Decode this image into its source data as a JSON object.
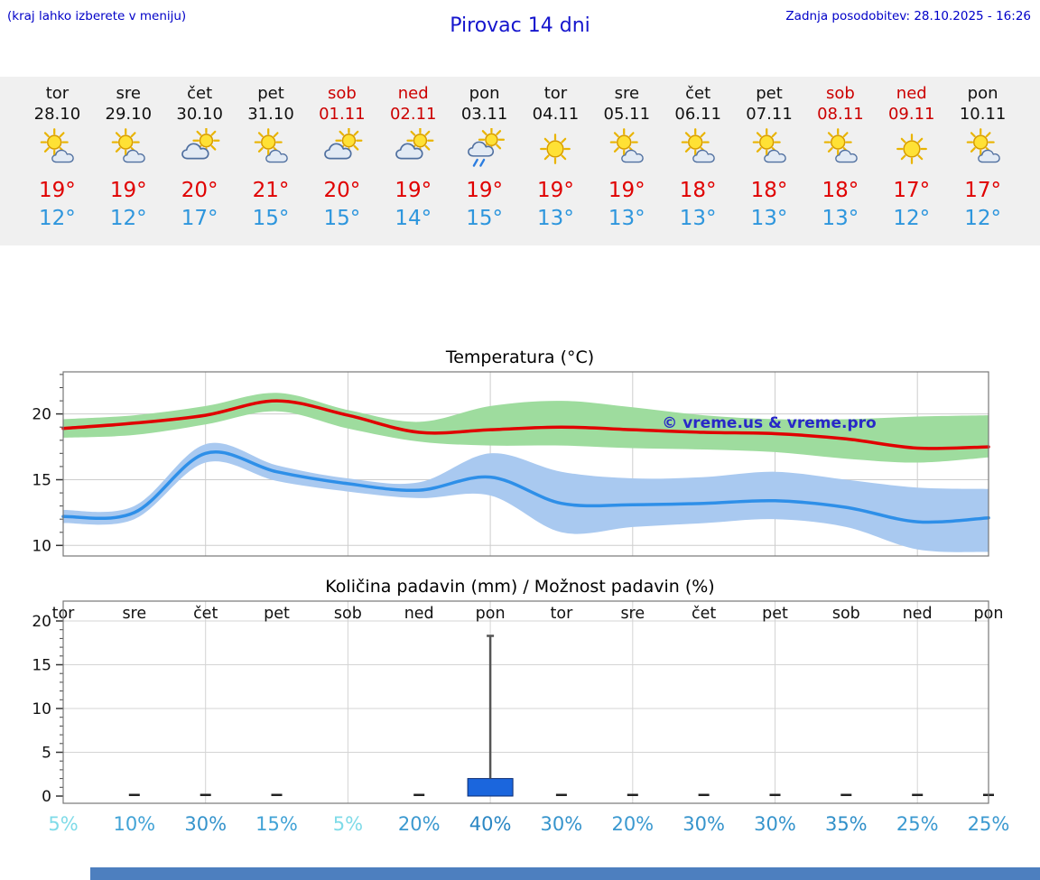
{
  "header": {
    "hint": "(kraj lahko izberete v meniju)",
    "title": "Pirovac 14 dni",
    "last_update": "Zadnja posodobitev: 28.10.2025 - 16:26"
  },
  "colors": {
    "header_text": "#0000c8",
    "high_temp": "#e00000",
    "low_temp": "#2e96dd",
    "weekend_text": "#cc0000",
    "strip_bg": "#f0f0f0",
    "footer_bar": "#4d7fbf",
    "max_line": "#e00000",
    "min_line": "#2e8fe8",
    "max_band": "#9edc9e",
    "min_band": "#a9c9f0",
    "precip_bar": "#1b66dd"
  },
  "days": [
    {
      "name": "tor",
      "date": "28.10",
      "weekend": false,
      "icon": "partly-sunny",
      "high": "19°",
      "low": "12°"
    },
    {
      "name": "sre",
      "date": "29.10",
      "weekend": false,
      "icon": "partly-sunny",
      "high": "19°",
      "low": "12°"
    },
    {
      "name": "čet",
      "date": "30.10",
      "weekend": false,
      "icon": "mostly-cloudy-sun",
      "high": "20°",
      "low": "17°"
    },
    {
      "name": "pet",
      "date": "31.10",
      "weekend": false,
      "icon": "partly-sunny",
      "high": "21°",
      "low": "15°"
    },
    {
      "name": "sob",
      "date": "01.11",
      "weekend": true,
      "icon": "mostly-cloudy-sun",
      "high": "20°",
      "low": "15°"
    },
    {
      "name": "ned",
      "date": "02.11",
      "weekend": true,
      "icon": "mostly-cloudy-sun",
      "high": "19°",
      "low": "14°"
    },
    {
      "name": "pon",
      "date": "03.11",
      "weekend": false,
      "icon": "sun-cloud-rain",
      "high": "19°",
      "low": "15°"
    },
    {
      "name": "tor",
      "date": "04.11",
      "weekend": false,
      "icon": "sunny",
      "high": "19°",
      "low": "13°"
    },
    {
      "name": "sre",
      "date": "05.11",
      "weekend": false,
      "icon": "partly-sunny",
      "high": "19°",
      "low": "13°"
    },
    {
      "name": "čet",
      "date": "06.11",
      "weekend": false,
      "icon": "partly-sunny",
      "high": "18°",
      "low": "13°"
    },
    {
      "name": "pet",
      "date": "07.11",
      "weekend": false,
      "icon": "partly-sunny",
      "high": "18°",
      "low": "13°"
    },
    {
      "name": "sob",
      "date": "08.11",
      "weekend": true,
      "icon": "partly-sunny",
      "high": "18°",
      "low": "13°"
    },
    {
      "name": "ned",
      "date": "09.11",
      "weekend": true,
      "icon": "sunny",
      "high": "17°",
      "low": "12°"
    },
    {
      "name": "pon",
      "date": "10.11",
      "weekend": false,
      "icon": "partly-sunny",
      "high": "17°",
      "low": "12°"
    }
  ],
  "chart_data": [
    {
      "type": "line",
      "title": "Temperatura (°C)",
      "categories": [
        "tor",
        "sre",
        "čet",
        "pet",
        "sob",
        "ned",
        "pon",
        "tor",
        "sre",
        "čet",
        "pet",
        "sob",
        "ned",
        "pon"
      ],
      "ylim": [
        9.2,
        23.2
      ],
      "yticks": [
        10,
        15,
        20
      ],
      "grid": true,
      "legend": "none",
      "watermark": "© vreme.us & vreme.pro",
      "series": [
        {
          "name": "max-temp",
          "color": "#e00000",
          "values": [
            18.9,
            19.3,
            19.9,
            21.0,
            19.9,
            18.6,
            18.8,
            19.0,
            18.8,
            18.6,
            18.5,
            18.1,
            17.4,
            17.5
          ]
        },
        {
          "name": "min-temp",
          "color": "#2e8fe8",
          "values": [
            12.2,
            12.5,
            17.0,
            15.6,
            14.7,
            14.2,
            15.2,
            13.2,
            13.1,
            13.2,
            13.4,
            12.9,
            11.8,
            12.1
          ]
        }
      ],
      "bands": [
        {
          "name": "max-temp-range",
          "color": "#9edc9e",
          "upper": [
            19.6,
            19.9,
            20.6,
            21.6,
            20.3,
            19.4,
            20.6,
            21.0,
            20.5,
            19.9,
            19.6,
            19.6,
            19.8,
            19.9
          ],
          "lower": [
            18.2,
            18.4,
            19.2,
            20.2,
            18.9,
            17.9,
            17.6,
            17.6,
            17.4,
            17.3,
            17.1,
            16.6,
            16.3,
            16.7
          ]
        },
        {
          "name": "min-temp-range",
          "color": "#a9c9f0",
          "upper": [
            12.7,
            13.0,
            17.7,
            16.1,
            15.1,
            14.8,
            17.0,
            15.6,
            15.1,
            15.2,
            15.6,
            15.0,
            14.4,
            14.3
          ],
          "lower": [
            11.7,
            12.0,
            16.3,
            14.9,
            14.1,
            13.6,
            13.8,
            11.0,
            11.4,
            11.7,
            12.0,
            11.4,
            9.7,
            9.5
          ]
        }
      ]
    },
    {
      "type": "bar",
      "title": "Količina padavin (mm) / Možnost padavin (%)",
      "categories": [
        "tor",
        "sre",
        "čet",
        "pet",
        "sob",
        "ned",
        "pon",
        "tor",
        "sre",
        "čet",
        "pet",
        "sob",
        "ned",
        "pon"
      ],
      "ylim": [
        0,
        20
      ],
      "yticks": [
        0,
        5,
        10,
        15,
        20
      ],
      "grid": true,
      "bar_color": "#1b66dd",
      "amounts_mm": [
        0,
        0.1,
        0.1,
        0.1,
        0,
        0.1,
        2,
        0.1,
        0.1,
        0.1,
        0.1,
        0.1,
        0.1,
        0.1
      ],
      "whisker_max_mm": [
        null,
        null,
        null,
        null,
        null,
        null,
        18.3,
        null,
        null,
        null,
        null,
        null,
        null,
        null
      ],
      "probabilities": [
        {
          "value": "5%",
          "color": "#7fdbe8"
        },
        {
          "value": "10%",
          "color": "#42a3d6"
        },
        {
          "value": "30%",
          "color": "#3694cc"
        },
        {
          "value": "15%",
          "color": "#42a3d6"
        },
        {
          "value": "5%",
          "color": "#7fdbe8"
        },
        {
          "value": "20%",
          "color": "#3b99d0"
        },
        {
          "value": "40%",
          "color": "#2b87c4"
        },
        {
          "value": "30%",
          "color": "#3694cc"
        },
        {
          "value": "20%",
          "color": "#3b99d0"
        },
        {
          "value": "30%",
          "color": "#3694cc"
        },
        {
          "value": "30%",
          "color": "#3694cc"
        },
        {
          "value": "35%",
          "color": "#3190c9"
        },
        {
          "value": "25%",
          "color": "#3b99d0"
        },
        {
          "value": "25%",
          "color": "#3b99d0"
        }
      ]
    }
  ]
}
